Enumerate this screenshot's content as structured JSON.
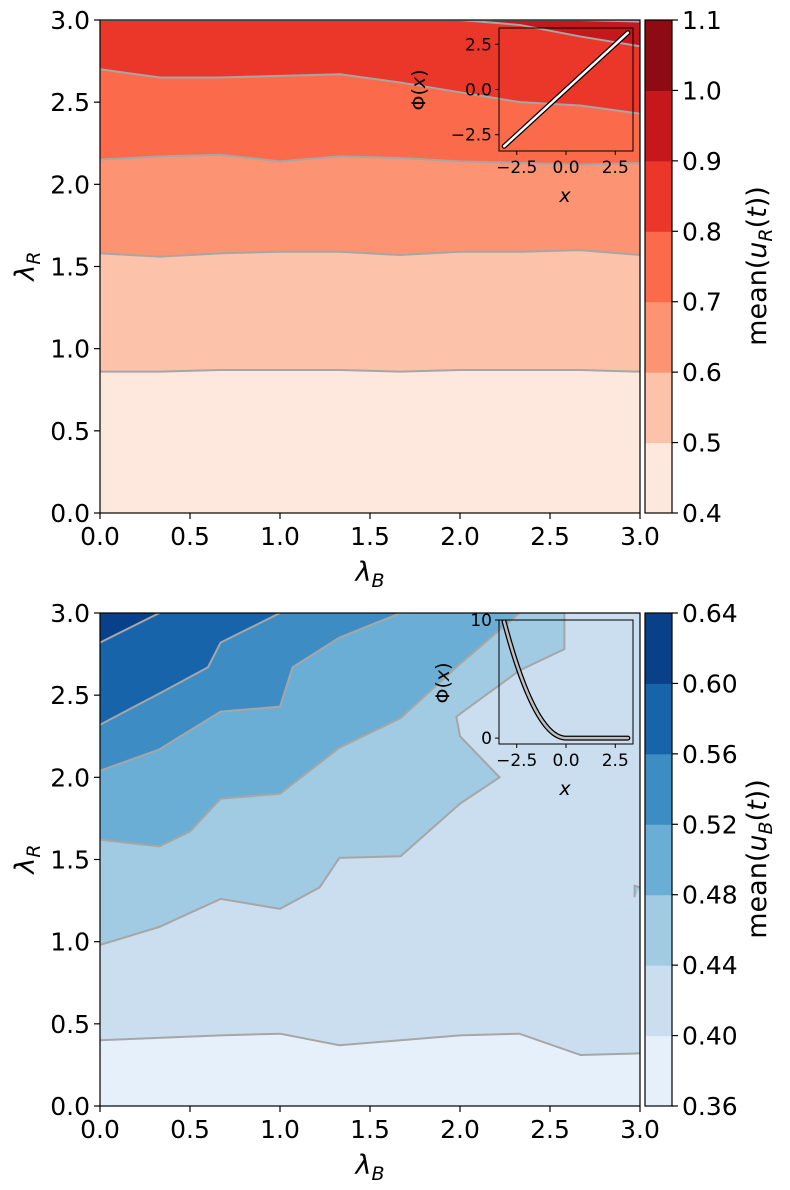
{
  "chart_data": [
    {
      "type": "contourf",
      "title": "",
      "xlabel": "λ_B",
      "ylabel": "λ_R",
      "xlim": [
        0,
        3
      ],
      "ylim": [
        0,
        3
      ],
      "xticks": [
        "0.0",
        "0.5",
        "1.0",
        "1.5",
        "2.0",
        "2.5",
        "3.0"
      ],
      "yticks": [
        "0.0",
        "0.5",
        "1.0",
        "1.5",
        "2.0",
        "2.5",
        "3.0"
      ],
      "colorbar": {
        "label": "mean(u_R(t))",
        "levels": [
          0.4,
          0.5,
          0.6,
          0.7,
          0.8,
          0.9,
          1.0,
          1.1
        ],
        "tick_labels": [
          "0.4",
          "0.5",
          "0.6",
          "0.7",
          "0.8",
          "0.9",
          "1.0",
          "1.1"
        ],
        "colors": [
          "#fee8de",
          "#fcc3aa",
          "#fc9473",
          "#fb6a4a",
          "#ea372a",
          "#c5171c",
          "#8e0b13"
        ]
      },
      "contour_color": "#a6a6a6",
      "x_grid": [
        0,
        0.333,
        0.667,
        1.0,
        1.333,
        1.667,
        2.0,
        2.333,
        2.667,
        3.0
      ],
      "contours": [
        {
          "level": 0.5,
          "y": [
            0.86,
            0.86,
            0.87,
            0.87,
            0.87,
            0.86,
            0.87,
            0.87,
            0.87,
            0.86
          ]
        },
        {
          "level": 0.6,
          "y": [
            1.58,
            1.56,
            1.58,
            1.59,
            1.59,
            1.57,
            1.59,
            1.59,
            1.6,
            1.57
          ]
        },
        {
          "level": 0.7,
          "y": [
            2.15,
            2.17,
            2.18,
            2.14,
            2.17,
            2.16,
            2.14,
            2.13,
            2.12,
            2.13
          ]
        },
        {
          "level": 0.8,
          "y": [
            2.7,
            2.65,
            2.65,
            2.66,
            2.67,
            2.62,
            2.56,
            2.5,
            2.48,
            2.43
          ]
        },
        {
          "level": 0.9,
          "y": [
            3.0,
            3.0,
            3.0,
            3.0,
            3.0,
            3.0,
            3.0,
            2.97,
            2.9,
            2.84
          ]
        },
        {
          "level": 1.0,
          "y": [
            3.0,
            3.0,
            3.0,
            3.0,
            3.0,
            3.0,
            3.0,
            3.0,
            3.0,
            2.99
          ]
        }
      ],
      "inset": {
        "xlabel": "x",
        "ylabel": "Φ(x)",
        "xticks": [
          "−2.5",
          "0.0",
          "2.5"
        ],
        "yticks": [
          "2.5",
          "0.0",
          "−2.5"
        ],
        "xlim": [
          -3.4,
          3.4
        ],
        "ylim": [
          -3.4,
          3.4
        ],
        "curve": "linear",
        "x": [
          -3.14,
          3.14
        ],
        "y": [
          -3.14,
          3.14
        ]
      }
    },
    {
      "type": "contourf",
      "title": "",
      "xlabel": "λ_B",
      "ylabel": "λ_R",
      "xlim": [
        0,
        3
      ],
      "ylim": [
        0,
        3
      ],
      "xticks": [
        "0.0",
        "0.5",
        "1.0",
        "1.5",
        "2.0",
        "2.5",
        "3.0"
      ],
      "yticks": [
        "0.0",
        "0.5",
        "1.0",
        "1.5",
        "2.0",
        "2.5",
        "3.0"
      ],
      "colorbar": {
        "label": "mean(u_B(t))",
        "levels": [
          0.36,
          0.4,
          0.44,
          0.48,
          0.52,
          0.56,
          0.6,
          0.64
        ],
        "tick_labels": [
          "0.36",
          "0.40",
          "0.44",
          "0.48",
          "0.52",
          "0.56",
          "0.60",
          "0.64"
        ],
        "colors": [
          "#e6f0fa",
          "#cbdef0",
          "#a0cbe2",
          "#6aaed6",
          "#3d8dc4",
          "#1764ab",
          "#08418a"
        ]
      },
      "contour_color": "#a6a6a6",
      "contours": [
        {
          "level": 0.4,
          "points": [
            [
              0,
              0.4
            ],
            [
              0.67,
              0.43
            ],
            [
              1.0,
              0.44
            ],
            [
              1.33,
              0.37
            ],
            [
              1.67,
              0.4
            ],
            [
              2.0,
              0.43
            ],
            [
              2.33,
              0.44
            ],
            [
              2.67,
              0.31
            ],
            [
              3.0,
              0.32
            ]
          ]
        },
        {
          "level": 0.44,
          "points": [
            [
              0,
              0.98
            ],
            [
              0.33,
              1.09
            ],
            [
              0.67,
              1.26
            ],
            [
              1.0,
              1.2
            ],
            [
              1.22,
              1.33
            ],
            [
              1.33,
              1.51
            ],
            [
              1.67,
              1.52
            ],
            [
              2.0,
              1.84
            ],
            [
              2.22,
              2.0
            ],
            [
              2.0,
              2.25
            ],
            [
              1.98,
              2.37
            ],
            [
              2.33,
              2.65
            ],
            [
              2.58,
              2.78
            ],
            [
              2.58,
              3.0
            ]
          ]
        },
        {
          "level": 0.48,
          "points": [
            [
              0,
              1.62
            ],
            [
              0.33,
              1.58
            ],
            [
              0.5,
              1.67
            ],
            [
              0.67,
              1.87
            ],
            [
              1.0,
              1.9
            ],
            [
              1.33,
              2.18
            ],
            [
              1.67,
              2.36
            ],
            [
              2.0,
              2.69
            ],
            [
              2.33,
              3.0
            ]
          ]
        },
        {
          "level": 0.52,
          "points": [
            [
              0,
              2.04
            ],
            [
              0.33,
              2.17
            ],
            [
              0.67,
              2.4
            ],
            [
              1.0,
              2.43
            ],
            [
              1.07,
              2.67
            ],
            [
              1.33,
              2.85
            ],
            [
              1.67,
              3.0
            ]
          ]
        },
        {
          "level": 0.56,
          "points": [
            [
              0,
              2.32
            ],
            [
              0.33,
              2.51
            ],
            [
              0.6,
              2.67
            ],
            [
              0.67,
              2.82
            ],
            [
              1.0,
              3.0
            ]
          ]
        },
        {
          "level": 0.6,
          "points": [
            [
              0,
              2.82
            ],
            [
              0.33,
              3.0
            ]
          ]
        },
        {
          "level": 0.44,
          "points": [
            [
              2.97,
              1.27
            ],
            [
              2.97,
              1.34
            ],
            [
              3.0,
              1.33
            ]
          ]
        }
      ],
      "inset": {
        "xlabel": "x",
        "ylabel": "Φ(x)",
        "xticks": [
          "−2.5",
          "0.0",
          "2.5"
        ],
        "yticks": [
          "10",
          "0"
        ],
        "xlim": [
          -3.4,
          3.4
        ],
        "ylim": [
          -0.5,
          10
        ],
        "curve": "quadratic-left",
        "x": [
          -3.14,
          -2.5,
          -2.0,
          -1.5,
          -1.0,
          -0.5,
          0.0,
          1.0,
          2.0,
          3.14
        ],
        "y": [
          9.86,
          6.25,
          4.0,
          2.25,
          1.0,
          0.25,
          0.0,
          0.0,
          0.0,
          0.0
        ]
      }
    }
  ]
}
